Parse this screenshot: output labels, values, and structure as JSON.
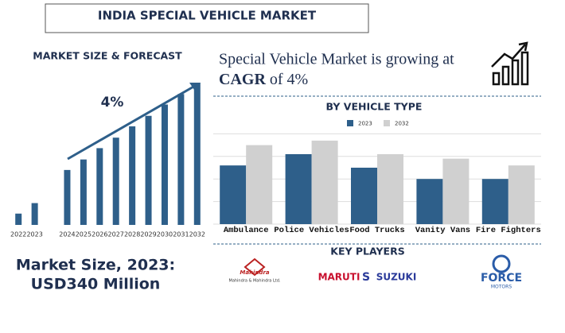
{
  "header": {
    "title": "INDIA SPECIAL VEHICLE MARKET"
  },
  "chart_data": [
    {
      "type": "bar",
      "title": "MARKET SIZE & FORECAST",
      "annotation": "4%",
      "categories": [
        "2022",
        "2023",
        null,
        "2024",
        "2025",
        "2026",
        "2027",
        "2028",
        "2029",
        "2030",
        "2031",
        "2032"
      ],
      "values": [
        14,
        27,
        null,
        68,
        81,
        95,
        108,
        122,
        135,
        149,
        162,
        176
      ],
      "color": "#2e5f8a",
      "ylim": [
        0,
        180
      ]
    },
    {
      "type": "grouped-bar",
      "title": "BY VEHICLE TYPE",
      "categories": [
        "Ambulance",
        "Police Vehicles",
        "Food Trucks",
        "Vanity Vans",
        "Fire Fighters"
      ],
      "series": [
        {
          "name": "2023",
          "color": "#2e5f8a",
          "values": [
            2.6,
            3.1,
            2.5,
            2.0,
            2.0
          ]
        },
        {
          "name": "2032",
          "color": "#d0d0d0",
          "values": [
            3.5,
            3.7,
            3.1,
            2.9,
            2.6
          ]
        }
      ],
      "ylim": [
        0,
        5
      ],
      "yticks": [
        0,
        1,
        2,
        3,
        4
      ],
      "grid": true
    }
  ],
  "cagr": {
    "prefix": "Special Vehicle Market is growing at",
    "label": "CAGR",
    "suffix": "of 4%"
  },
  "market_size": {
    "label": "Market Size, 2023:",
    "value": "USD340 Million"
  },
  "key_players": {
    "title": "KEY PLAYERS",
    "players": [
      {
        "name": "Mahindra",
        "sub": "Mahindra & Mahindra Ltd."
      },
      {
        "name": "MARUTI",
        "sub": "SUZUKI"
      },
      {
        "name": "FORCE",
        "sub": "MOTORS"
      }
    ]
  }
}
